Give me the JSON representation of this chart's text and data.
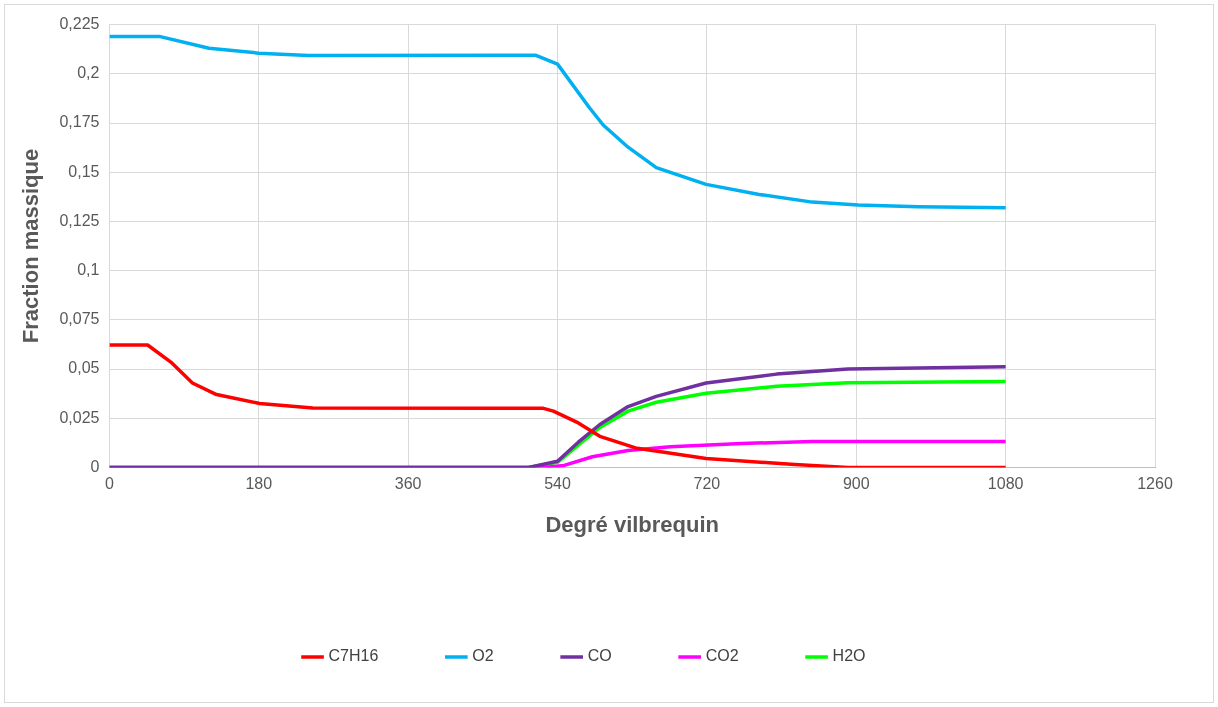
{
  "chart_data": {
    "type": "line",
    "xlabel": "Degré vilbrequin",
    "ylabel": "Fraction massique",
    "xlim": [
      0,
      1260
    ],
    "xticks": [
      0,
      180,
      360,
      540,
      720,
      900,
      1080,
      1260
    ],
    "ylim": [
      0,
      0.225
    ],
    "yticks": [
      0,
      {
        "value": 0.025,
        "label": "0,025"
      },
      {
        "value": 0.05,
        "label": "0,05"
      },
      {
        "value": 0.075,
        "label": "0,075"
      },
      {
        "value": 0.1,
        "label": "0,1"
      },
      {
        "value": 0.125,
        "label": "0,125"
      },
      {
        "value": 0.15,
        "label": "0,15"
      },
      {
        "value": 0.175,
        "label": "0,175"
      },
      {
        "value": 0.2,
        "label": "0,2"
      },
      {
        "value": 0.225,
        "label": "0,225"
      }
    ],
    "grid": true,
    "legend": "bottom",
    "marker": "none",
    "line_style": "solid",
    "series": [
      {
        "name": "C7H16",
        "color": "#ff0000",
        "x": [
          0,
          46,
          74,
          100,
          129,
          181,
          245,
          523,
          535,
          565,
          591,
          634,
          719,
          826,
          890,
          1080
        ],
        "values": [
          0.0622,
          0.0622,
          0.0535,
          0.0429,
          0.037,
          0.0325,
          0.0302,
          0.03,
          0.0286,
          0.0226,
          0.0158,
          0.0099,
          0.0045,
          0.0015,
          0.0,
          0.0
        ]
      },
      {
        "name": "O2",
        "color": "#00b0f0",
        "x": [
          0,
          60,
          120,
          180,
          240,
          514,
          540,
          578,
          595,
          625,
          659,
          719,
          783,
          847,
          902,
          975,
          1080
        ],
        "values": [
          0.219,
          0.219,
          0.213,
          0.2105,
          0.2093,
          0.2094,
          0.2049,
          0.183,
          0.174,
          0.1627,
          0.1523,
          0.1438,
          0.1387,
          0.1348,
          0.1333,
          0.1325,
          0.1319
        ]
      },
      {
        "name": "CO",
        "color": "#7030a0",
        "x": [
          0,
          505,
          540,
          565,
          591,
          625,
          659,
          719,
          804,
          890,
          1080
        ],
        "values": [
          0,
          0,
          0.0031,
          0.0128,
          0.0218,
          0.0309,
          0.0361,
          0.0429,
          0.0474,
          0.05,
          0.0512
        ]
      },
      {
        "name": "CO2",
        "color": "#ff00ff",
        "x": [
          0,
          523,
          548,
          582,
          625,
          676,
          762,
          847,
          1080
        ],
        "values": [
          0,
          0,
          0.001,
          0.0054,
          0.0086,
          0.0105,
          0.0122,
          0.0131,
          0.0131
        ]
      },
      {
        "name": "H2O",
        "color": "#00ff00",
        "x": [
          0,
          505,
          540,
          565,
          591,
          625,
          659,
          719,
          804,
          890,
          1080
        ],
        "values": [
          0,
          0,
          0.0026,
          0.0113,
          0.0203,
          0.0286,
          0.0331,
          0.0377,
          0.0412,
          0.043,
          0.0436
        ]
      }
    ]
  }
}
